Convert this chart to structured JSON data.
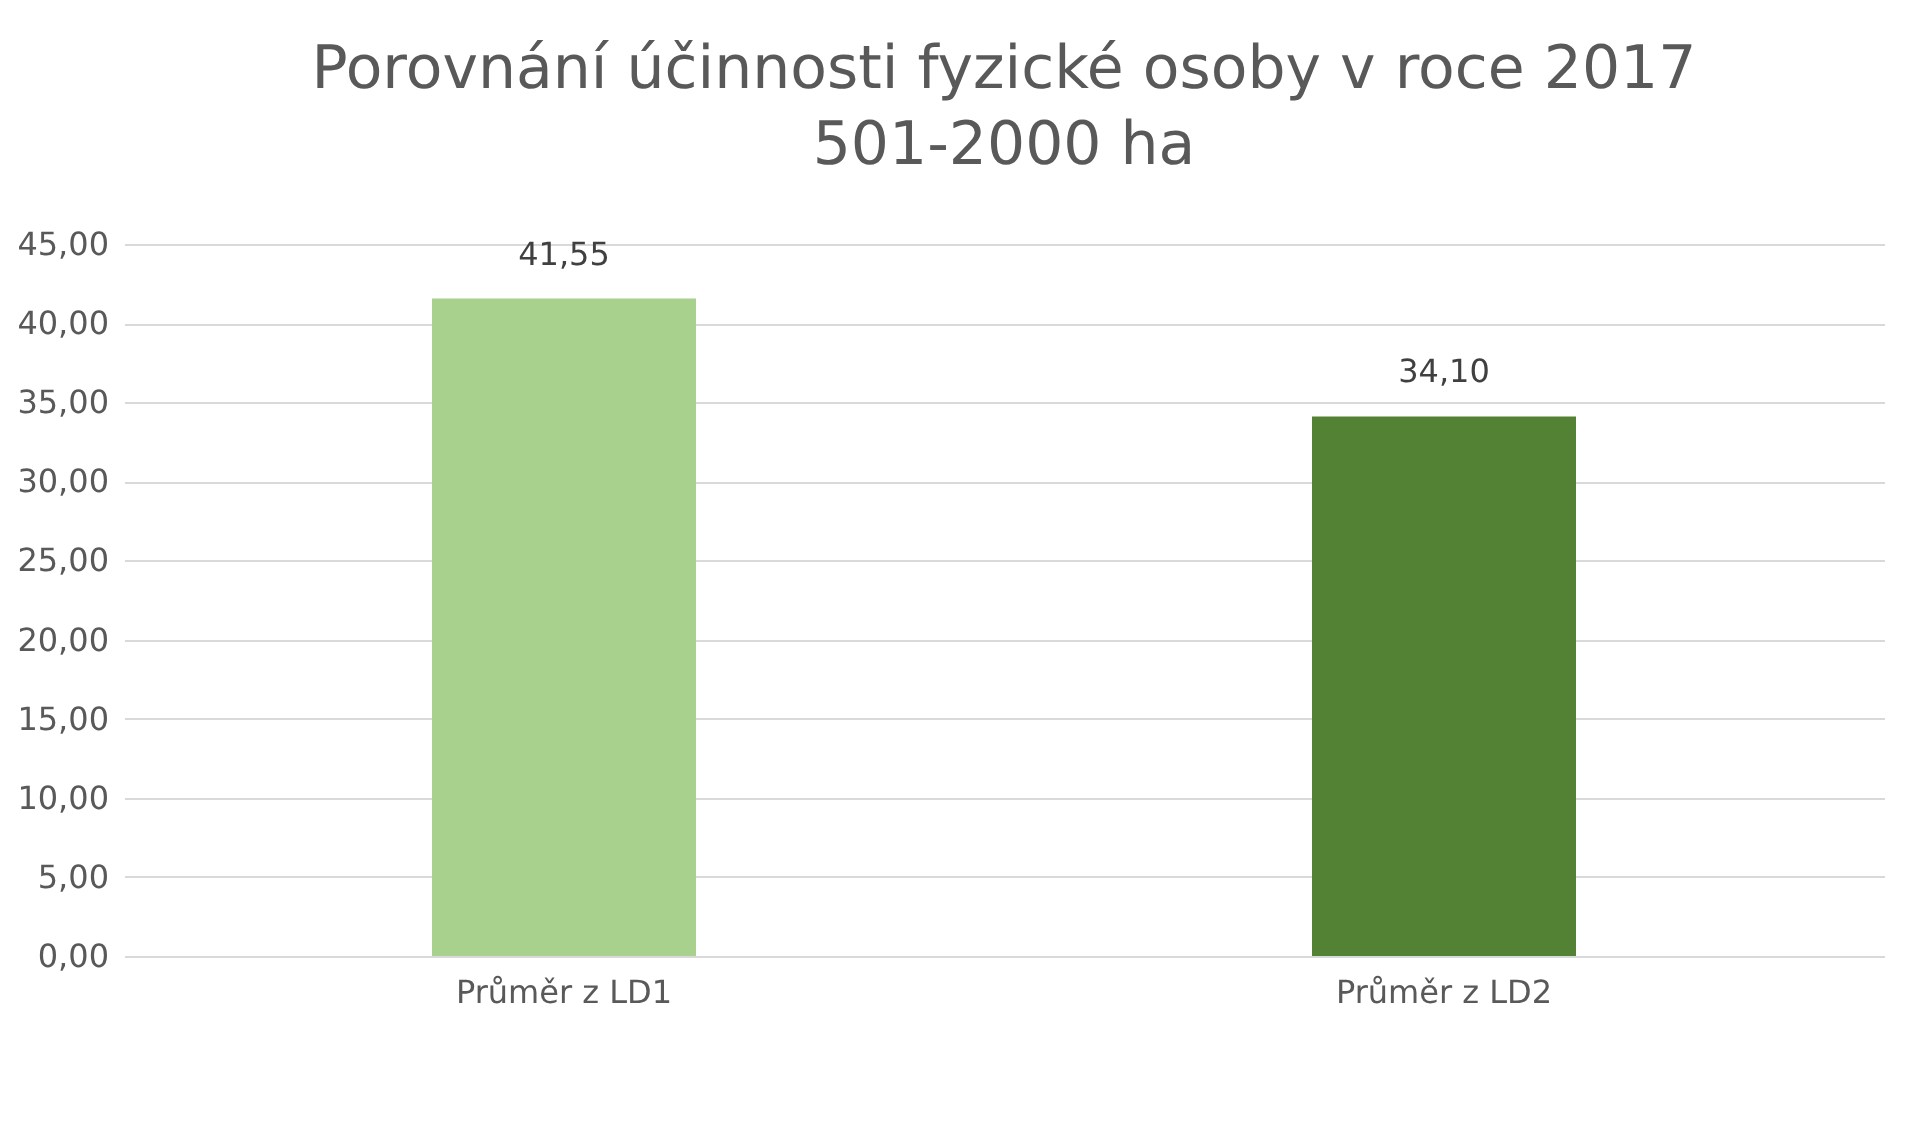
{
  "chart_data": {
    "type": "bar",
    "title": "Porovnání účinnosti fyzické osoby v roce 2017",
    "subtitle": "501-2000 ha",
    "categories": [
      "Průměr z LD1",
      "Průměr z LD2"
    ],
    "values": [
      41.55,
      34.1
    ],
    "colors": [
      "#a9d18e",
      "#548235"
    ],
    "value_labels": [
      "41,55",
      "34,10"
    ],
    "ylim": [
      0,
      45
    ],
    "yticks": [
      {
        "value": 0,
        "label": "0,00"
      },
      {
        "value": 5,
        "label": "5,00"
      },
      {
        "value": 10,
        "label": "10,00"
      },
      {
        "value": 15,
        "label": "15,00"
      },
      {
        "value": 20,
        "label": "20,00"
      },
      {
        "value": 25,
        "label": "25,00"
      },
      {
        "value": 30,
        "label": "30,00"
      },
      {
        "value": 35,
        "label": "35,00"
      },
      {
        "value": 40,
        "label": "40,00"
      },
      {
        "value": 45,
        "label": "45,00"
      }
    ],
    "grid": "y"
  }
}
